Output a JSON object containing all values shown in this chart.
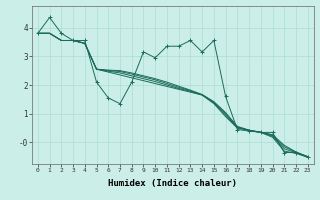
{
  "xlabel": "Humidex (Indice chaleur)",
  "bg_color": "#cceee8",
  "grid_color": "#aaddcc",
  "line_color": "#1a6b5a",
  "xlim": [
    -0.5,
    23.5
  ],
  "ylim": [
    -0.75,
    4.75
  ],
  "yticks": [
    0,
    1,
    2,
    3,
    4
  ],
  "ytick_labels": [
    "-0",
    "1",
    "2",
    "3",
    "4"
  ],
  "xticks": [
    0,
    1,
    2,
    3,
    4,
    5,
    6,
    7,
    8,
    9,
    10,
    11,
    12,
    13,
    14,
    15,
    16,
    17,
    18,
    19,
    20,
    21,
    22,
    23
  ],
  "lines": [
    [
      3.8,
      4.35,
      3.8,
      3.55,
      3.55,
      2.1,
      1.55,
      1.35,
      2.1,
      3.15,
      2.95,
      3.35,
      3.35,
      3.55,
      3.15,
      3.55,
      1.6,
      0.45,
      0.4,
      0.35,
      0.35,
      -0.35,
      -0.35,
      -0.5
    ],
    [
      3.8,
      3.8,
      3.55,
      3.55,
      3.45,
      2.55,
      2.45,
      2.35,
      2.25,
      2.15,
      2.05,
      1.95,
      1.85,
      1.75,
      1.65,
      1.35,
      0.9,
      0.5,
      0.42,
      0.35,
      0.18,
      -0.3,
      -0.38,
      -0.52
    ],
    [
      3.8,
      3.8,
      3.55,
      3.55,
      3.45,
      2.55,
      2.48,
      2.42,
      2.32,
      2.22,
      2.12,
      2.0,
      1.88,
      1.78,
      1.65,
      1.38,
      0.95,
      0.52,
      0.42,
      0.35,
      0.22,
      -0.22,
      -0.36,
      -0.5
    ],
    [
      3.8,
      3.8,
      3.55,
      3.55,
      3.45,
      2.55,
      2.5,
      2.47,
      2.38,
      2.28,
      2.18,
      2.05,
      1.92,
      1.8,
      1.66,
      1.4,
      1.0,
      0.54,
      0.42,
      0.35,
      0.25,
      -0.15,
      -0.34,
      -0.5
    ],
    [
      3.8,
      3.8,
      3.55,
      3.55,
      3.45,
      2.55,
      2.52,
      2.5,
      2.42,
      2.32,
      2.22,
      2.1,
      1.96,
      1.82,
      1.67,
      1.42,
      1.04,
      0.56,
      0.43,
      0.36,
      0.27,
      -0.1,
      -0.33,
      -0.49
    ]
  ]
}
